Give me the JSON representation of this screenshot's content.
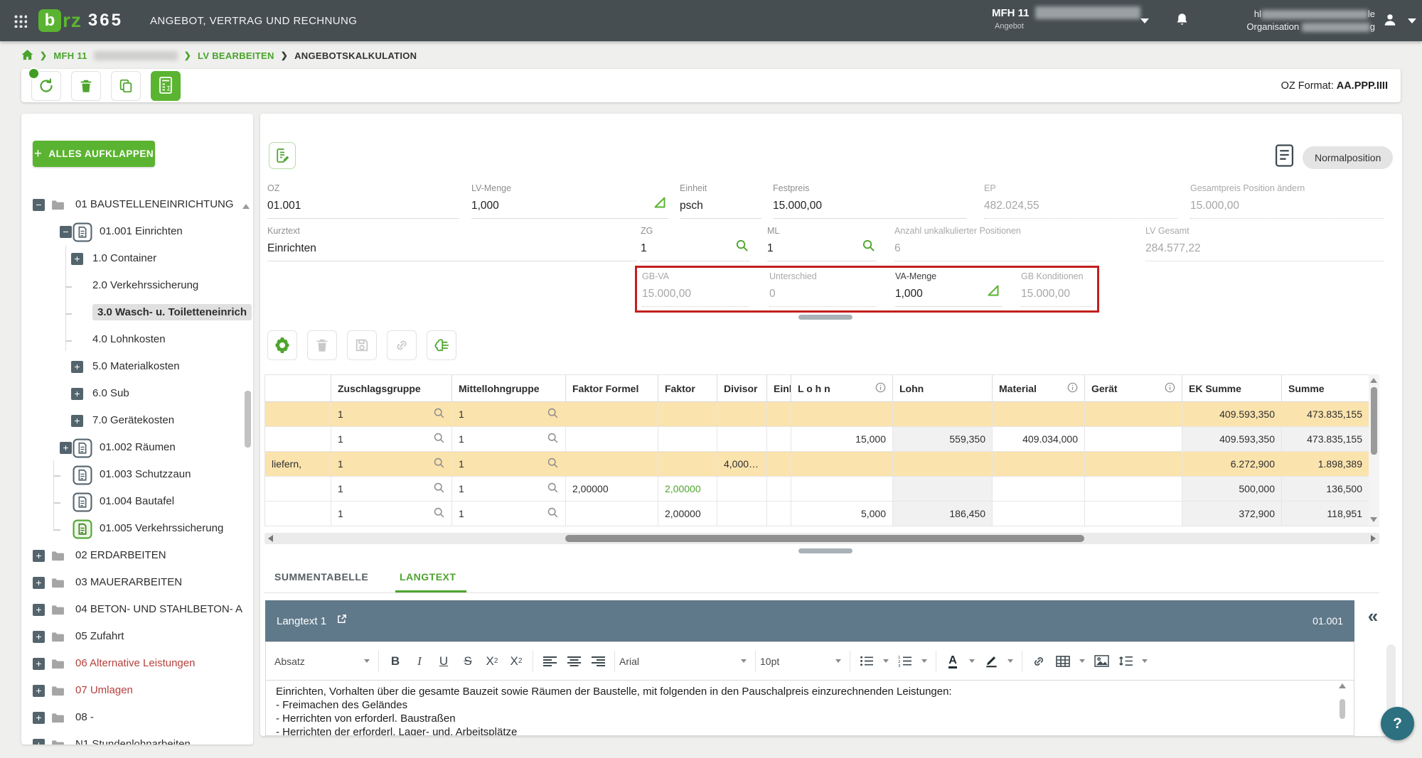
{
  "topbar": {
    "logo_b": "b",
    "logo_rz": "rz",
    "logo_365": "365",
    "app_title": "ANGEBOT, VERTRAG UND RECHNUNG",
    "project_name": "MFH 11",
    "project_sub": "Angebot",
    "user_prefix": "hl",
    "user_suffix": "le",
    "org_label": "Organisation",
    "org_suffix": "g"
  },
  "breadcrumb": {
    "item1": "MFH 11",
    "item2": "LV BEARBEITEN",
    "item3": "ANGEBOTSKALKULATION"
  },
  "actionbar": {
    "oz_format_label": "OZ Format:",
    "oz_format_value": "AA.PPP.IIII"
  },
  "sidebar": {
    "expand_all_label": "ALLES AUFKLAPPEN",
    "items": [
      {
        "label": "01 BAUSTELLENEINRICHTUNG",
        "level": 0,
        "expander": "minus",
        "icon": "folder"
      },
      {
        "label": "01.001 Einrichten",
        "level": 1,
        "expander": "minus",
        "icon": "doc"
      },
      {
        "label": "1.0 Container",
        "level": 2,
        "expander": "plus",
        "icon": "none"
      },
      {
        "label": "2.0 Verkehrssicherung",
        "level": 2,
        "expander": "tick",
        "icon": "none"
      },
      {
        "label": "3.0 Wasch- u. Toiletteneinrich",
        "level": 2,
        "expander": "tick",
        "icon": "none",
        "selected": true
      },
      {
        "label": "4.0 Lohnkosten",
        "level": 2,
        "expander": "tick",
        "icon": "none"
      },
      {
        "label": "5.0 Materialkosten",
        "level": 2,
        "expander": "plus",
        "icon": "none"
      },
      {
        "label": "6.0 Sub",
        "level": 2,
        "expander": "plus",
        "icon": "none"
      },
      {
        "label": "7.0 Gerätekosten",
        "level": 2,
        "expander": "plus",
        "icon": "none"
      },
      {
        "label": "01.002 Räumen",
        "level": 1,
        "expander": "plus",
        "icon": "doc"
      },
      {
        "label": "01.003 Schutzzaun",
        "level": 1,
        "expander": "tick",
        "icon": "doc"
      },
      {
        "label": "01.004 Bautafel",
        "level": 1,
        "expander": "tick",
        "icon": "doc"
      },
      {
        "label": "01.005 Verkehrssicherung",
        "level": 1,
        "expander": "tick",
        "icon": "doc-green"
      },
      {
        "label": "02 ERDARBEITEN",
        "level": 0,
        "expander": "plus",
        "icon": "folder"
      },
      {
        "label": "03 MAUERARBEITEN",
        "level": 0,
        "expander": "plus",
        "icon": "folder"
      },
      {
        "label": "04 BETON- UND STAHLBETON- A",
        "level": 0,
        "expander": "plus",
        "icon": "folder"
      },
      {
        "label": "05 Zufahrt",
        "level": 0,
        "expander": "plus",
        "icon": "folder"
      },
      {
        "label": "06 Alternative Leistungen",
        "level": 0,
        "expander": "plus",
        "icon": "folder",
        "red": true
      },
      {
        "label": "07 Umlagen",
        "level": 0,
        "expander": "plus",
        "icon": "folder",
        "red": true
      },
      {
        "label": "08 -",
        "level": 0,
        "expander": "plus",
        "icon": "folder"
      },
      {
        "label": "N1 Stundenlohnarbeiten",
        "level": 0,
        "expander": "plus",
        "icon": "folder"
      }
    ]
  },
  "position_form": {
    "type_badge": "Normalposition",
    "fields": {
      "oz": {
        "label": "OZ",
        "value": "01.001"
      },
      "lv_menge": {
        "label": "LV-Menge",
        "value": "1,000"
      },
      "einheit": {
        "label": "Einheit",
        "value": "psch"
      },
      "festpreis": {
        "label": "Festpreis",
        "value": "15.000,00"
      },
      "ep": {
        "label": "EP",
        "value": "482.024,55"
      },
      "gesamtpreis": {
        "label": "Gesamtpreis Position ändern",
        "value": "15.000,00"
      },
      "kurztext": {
        "label": "Kurztext",
        "value": "Einrichten"
      },
      "zg": {
        "label": "ZG",
        "value": "1"
      },
      "ml": {
        "label": "ML",
        "value": "1"
      },
      "unkalkuliert": {
        "label": "Anzahl unkalkulierter Positionen",
        "value": "6"
      },
      "lv_gesamt": {
        "label": "LV Gesamt",
        "value": "284.577,22"
      },
      "gb_va": {
        "label": "GB-VA",
        "value": "15.000,00"
      },
      "unterschied": {
        "label": "Unterschied",
        "value": "0"
      },
      "va_menge": {
        "label": "VA-Menge",
        "value": "1,000"
      },
      "gb_konditionen": {
        "label": "GB Konditionen",
        "value": "15.000,00"
      }
    }
  },
  "calc_table": {
    "headers": [
      "",
      "Zuschlagsgruppe",
      "Mittellohngruppe",
      "Faktor Formel",
      "Faktor",
      "Divisor",
      "Einheit",
      "L o h n",
      "Lohn",
      "Material",
      "Gerät",
      "EK Summe",
      "Summe"
    ],
    "info_columns": [
      7,
      9,
      10
    ],
    "rows": [
      {
        "highlight": true,
        "text": "",
        "zuschlagsgruppe": "1",
        "mittellohngruppe": "1",
        "faktor_formel": "",
        "faktor": "",
        "faktor_green": false,
        "divisor": "",
        "einheit": "",
        "lohn_menge": "",
        "lohn": "",
        "material": "",
        "geraet": "",
        "ek_summe": "409.593,350",
        "summe": "473.835,155"
      },
      {
        "highlight": false,
        "text": "",
        "zuschlagsgruppe": "1",
        "mittellohngruppe": "1",
        "faktor_formel": "",
        "faktor": "",
        "faktor_green": false,
        "divisor": "",
        "einheit": "",
        "lohn_menge": "15,000",
        "lohn": "559,350",
        "material": "409.034,000",
        "geraet": "",
        "ek_summe": "409.593,350",
        "summe": "473.835,155"
      },
      {
        "highlight": true,
        "text": "liefern,",
        "zuschlagsgruppe": "1",
        "mittellohngruppe": "1",
        "faktor_formel": "",
        "faktor": "",
        "faktor_green": false,
        "divisor": "4,000…",
        "einheit": "",
        "lohn_menge": "",
        "lohn": "",
        "material": "",
        "geraet": "",
        "ek_summe": "6.272,900",
        "summe": "1.898,389"
      },
      {
        "highlight": false,
        "text": "",
        "zuschlagsgruppe": "1",
        "mittellohngruppe": "1",
        "faktor_formel": "2,00000",
        "faktor": "2,00000",
        "faktor_green": true,
        "divisor": "",
        "einheit": "",
        "lohn_menge": "",
        "lohn": "",
        "material": "",
        "geraet": "",
        "ek_summe": "500,000",
        "summe": "136,500"
      },
      {
        "highlight": false,
        "text": "",
        "zuschlagsgruppe": "1",
        "mittellohngruppe": "1",
        "faktor_formel": "",
        "faktor": "2,00000",
        "faktor_green": false,
        "divisor": "",
        "einheit": "",
        "lohn_menge": "5,000",
        "lohn": "186,450",
        "material": "",
        "geraet": "",
        "ek_summe": "372,900",
        "summe": "118,951"
      }
    ]
  },
  "bottom_tabs": {
    "tab1": "SUMMENTABELLE",
    "tab2": "LANGTEXT"
  },
  "langtext": {
    "panel_title": "Langtext 1",
    "panel_oz": "01.001",
    "toolbar": {
      "paragraph": "Absatz",
      "font": "Arial",
      "size": "10pt"
    },
    "content_lines": [
      "Einrichten, Vorhalten über die gesamte Bauzeit sowie Räumen der Baustelle, mit folgenden in den Pauschalpreis einzurechnenden Leistungen:",
      "- Freimachen des Geländes",
      "- Herrichten von erforderl. Baustraßen",
      "- Herrichten der erforderl. Lager- und. Arbeitsplätze"
    ]
  },
  "help_label": "?",
  "colors": {
    "accent_green": "#5bb431",
    "topbar": "#474e52",
    "highlight_row": "#fbe3ad",
    "alert_red": "#c41f1f",
    "slate_header": "#60798a"
  }
}
